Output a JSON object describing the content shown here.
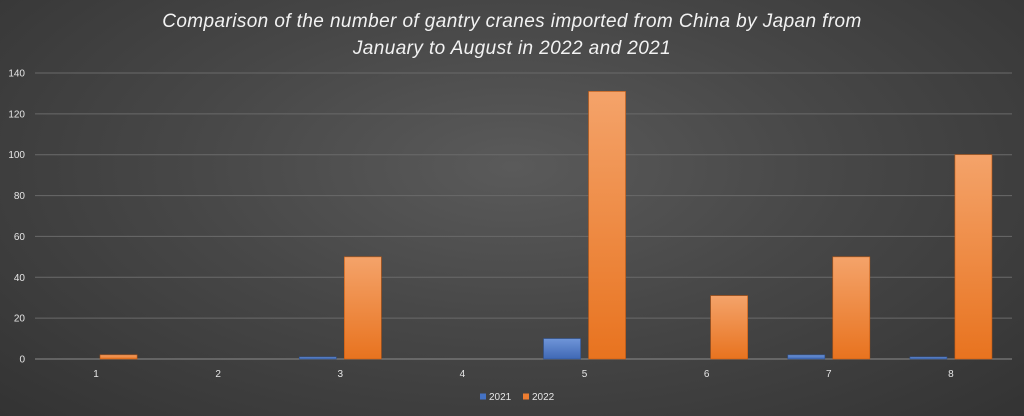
{
  "chart_data": {
    "type": "bar",
    "title": "Comparison of the number of gantry cranes imported from China by Japan from\nJanuary to August in 2022 and 2021",
    "xlabel": "",
    "ylabel": "",
    "categories": [
      "1",
      "2",
      "3",
      "4",
      "5",
      "6",
      "7",
      "8"
    ],
    "series": [
      {
        "name": "2021",
        "values": [
          0,
          0,
          1,
          0,
          10,
          0,
          2,
          1
        ],
        "color": "#4472c4"
      },
      {
        "name": "2022",
        "values": [
          2,
          0,
          50,
          0,
          131,
          31,
          50,
          100
        ],
        "color": "#ed7d31"
      }
    ],
    "ylim": [
      0,
      140
    ],
    "yticks": [
      0,
      20,
      40,
      60,
      80,
      100,
      120,
      140
    ],
    "grid": true,
    "legend_position": "bottom"
  }
}
